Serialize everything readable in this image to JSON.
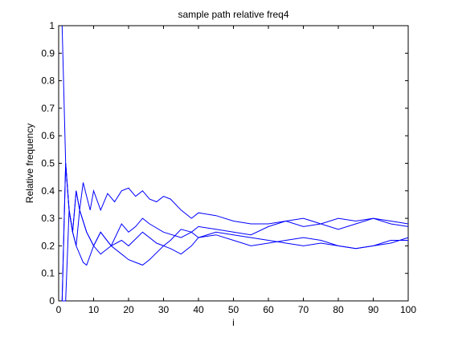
{
  "chart_data": {
    "type": "line",
    "title": "sample path relative freq4",
    "xlabel": "i",
    "ylabel": "Relative frequency",
    "xlim": [
      0,
      100
    ],
    "ylim": [
      0,
      1
    ],
    "xticks": [
      0,
      10,
      20,
      30,
      40,
      50,
      60,
      70,
      80,
      90,
      100
    ],
    "xtick_labels": [
      "0",
      "10",
      "20",
      "30",
      "40",
      "50",
      "60",
      "70",
      "80",
      "90",
      "100"
    ],
    "yticks": [
      0,
      0.1,
      0.2,
      0.3,
      0.4,
      0.5,
      0.6,
      0.7,
      0.8,
      0.9,
      1
    ],
    "ytick_labels": [
      "0",
      "0.1",
      "0.2",
      "0.3",
      "0.4",
      "0.5",
      "0.6",
      "0.7",
      "0.8",
      "0.9",
      "1"
    ],
    "grid": false,
    "line_color": "#0000ff",
    "series": [
      {
        "x": [
          1,
          2,
          3,
          4,
          5,
          6,
          7,
          8,
          9,
          10,
          12,
          14,
          16,
          18,
          20,
          22,
          24,
          26,
          28,
          30,
          32,
          35,
          38,
          40,
          45,
          50,
          55,
          60,
          65,
          70,
          75,
          80,
          85,
          90,
          95,
          100
        ],
        "y": [
          1,
          0.5,
          0.33,
          0.25,
          0.4,
          0.33,
          0.43,
          0.38,
          0.33,
          0.4,
          0.33,
          0.39,
          0.36,
          0.4,
          0.41,
          0.38,
          0.4,
          0.37,
          0.36,
          0.38,
          0.37,
          0.33,
          0.3,
          0.32,
          0.31,
          0.29,
          0.28,
          0.28,
          0.29,
          0.27,
          0.28,
          0.3,
          0.29,
          0.3,
          0.29,
          0.28
        ]
      },
      {
        "x": [
          1,
          2,
          3,
          4,
          5,
          6,
          7,
          8,
          10,
          12,
          15,
          18,
          20,
          22,
          24,
          26,
          30,
          35,
          38,
          40,
          45,
          50,
          55,
          60,
          65,
          70,
          75,
          80,
          85,
          90,
          95,
          100
        ],
        "y": [
          0,
          0.5,
          0.33,
          0.25,
          0.2,
          0.17,
          0.14,
          0.13,
          0.2,
          0.25,
          0.2,
          0.28,
          0.25,
          0.27,
          0.3,
          0.28,
          0.25,
          0.23,
          0.25,
          0.27,
          0.26,
          0.25,
          0.24,
          0.27,
          0.29,
          0.3,
          0.28,
          0.26,
          0.28,
          0.3,
          0.28,
          0.27
        ]
      },
      {
        "x": [
          1,
          2,
          3,
          4,
          5,
          6,
          8,
          10,
          12,
          15,
          18,
          20,
          24,
          28,
          30,
          32,
          35,
          38,
          40,
          45,
          50,
          55,
          60,
          65,
          70,
          75,
          80,
          85,
          90,
          95,
          100
        ],
        "y": [
          0,
          0,
          0.33,
          0.25,
          0.4,
          0.33,
          0.25,
          0.2,
          0.17,
          0.2,
          0.22,
          0.2,
          0.25,
          0.21,
          0.2,
          0.22,
          0.26,
          0.25,
          0.23,
          0.24,
          0.22,
          0.2,
          0.21,
          0.22,
          0.23,
          0.22,
          0.2,
          0.19,
          0.2,
          0.21,
          0.23
        ]
      },
      {
        "x": [
          1,
          2,
          3,
          4,
          5,
          6,
          8,
          10,
          12,
          15,
          18,
          20,
          22,
          24,
          26,
          30,
          32,
          35,
          38,
          40,
          45,
          50,
          55,
          60,
          65,
          70,
          75,
          80,
          85,
          90,
          95,
          100
        ],
        "y": [
          0,
          0.5,
          0.33,
          0.25,
          0.2,
          0.33,
          0.25,
          0.2,
          0.25,
          0.2,
          0.17,
          0.15,
          0.14,
          0.13,
          0.15,
          0.2,
          0.19,
          0.17,
          0.2,
          0.23,
          0.25,
          0.24,
          0.23,
          0.22,
          0.21,
          0.2,
          0.21,
          0.2,
          0.19,
          0.2,
          0.22,
          0.22
        ]
      }
    ]
  }
}
